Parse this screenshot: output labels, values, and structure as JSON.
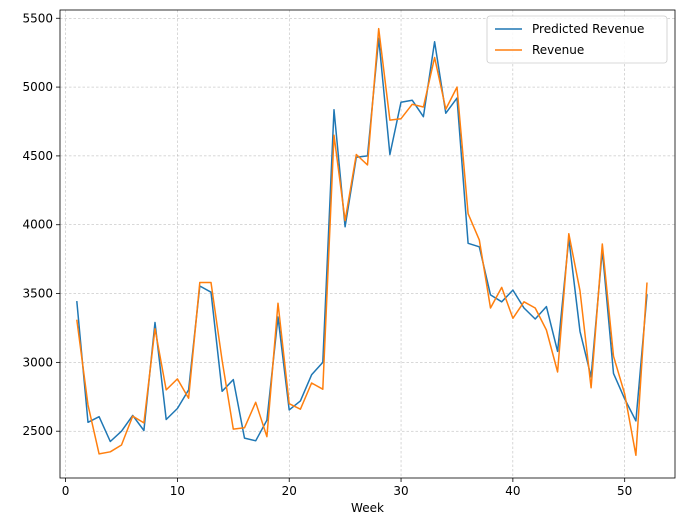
{
  "chart_data": {
    "type": "line",
    "title": "",
    "xlabel": "Week",
    "ylabel": "",
    "xlim": [
      -0.5,
      54.5
    ],
    "ylim": [
      2160,
      5560
    ],
    "xticks": [
      0,
      10,
      20,
      30,
      40,
      50
    ],
    "yticks": [
      2500,
      3000,
      3500,
      4000,
      4500,
      5000,
      5500
    ],
    "grid": true,
    "legend_position": "top-right",
    "colors": {
      "predicted": "#1f77b4",
      "actual": "#ff7f0e"
    },
    "x": [
      1,
      2,
      3,
      4,
      5,
      6,
      7,
      8,
      9,
      10,
      11,
      12,
      13,
      14,
      15,
      16,
      17,
      18,
      19,
      20,
      21,
      22,
      23,
      24,
      25,
      26,
      27,
      28,
      29,
      30,
      31,
      32,
      33,
      34,
      35,
      36,
      37,
      38,
      39,
      40,
      41,
      42,
      43,
      44,
      45,
      46,
      47,
      48,
      49,
      50,
      51,
      52
    ],
    "series": [
      {
        "name": "Predicted Revenue",
        "color": "#1f77b4",
        "values": [
          3445,
          2565,
          2605,
          2425,
          2500,
          2615,
          2505,
          3290,
          2585,
          2665,
          2800,
          3555,
          3510,
          2790,
          2875,
          2450,
          2430,
          2580,
          3330,
          2655,
          2720,
          2910,
          3000,
          4835,
          3985,
          4490,
          4500,
          5355,
          4510,
          4890,
          4905,
          4785,
          5330,
          4810,
          4920,
          3865,
          3840,
          3490,
          3440,
          3525,
          3395,
          3315,
          3405,
          3080,
          3900,
          3225,
          2895,
          3815,
          2920,
          2735,
          2575,
          3495
        ]
      },
      {
        "name": "Revenue",
        "color": "#ff7f0e",
        "values": [
          3310,
          2690,
          2335,
          2350,
          2400,
          2610,
          2560,
          3245,
          2800,
          2880,
          2740,
          3580,
          3580,
          3015,
          2515,
          2525,
          2710,
          2460,
          3430,
          2700,
          2660,
          2850,
          2805,
          4650,
          4030,
          4510,
          4435,
          5425,
          4760,
          4770,
          4875,
          4855,
          5215,
          4840,
          5000,
          4080,
          3890,
          3395,
          3545,
          3320,
          3440,
          3395,
          3235,
          2930,
          3935,
          3520,
          2815,
          3860,
          3045,
          2770,
          2325,
          3580
        ]
      }
    ]
  }
}
